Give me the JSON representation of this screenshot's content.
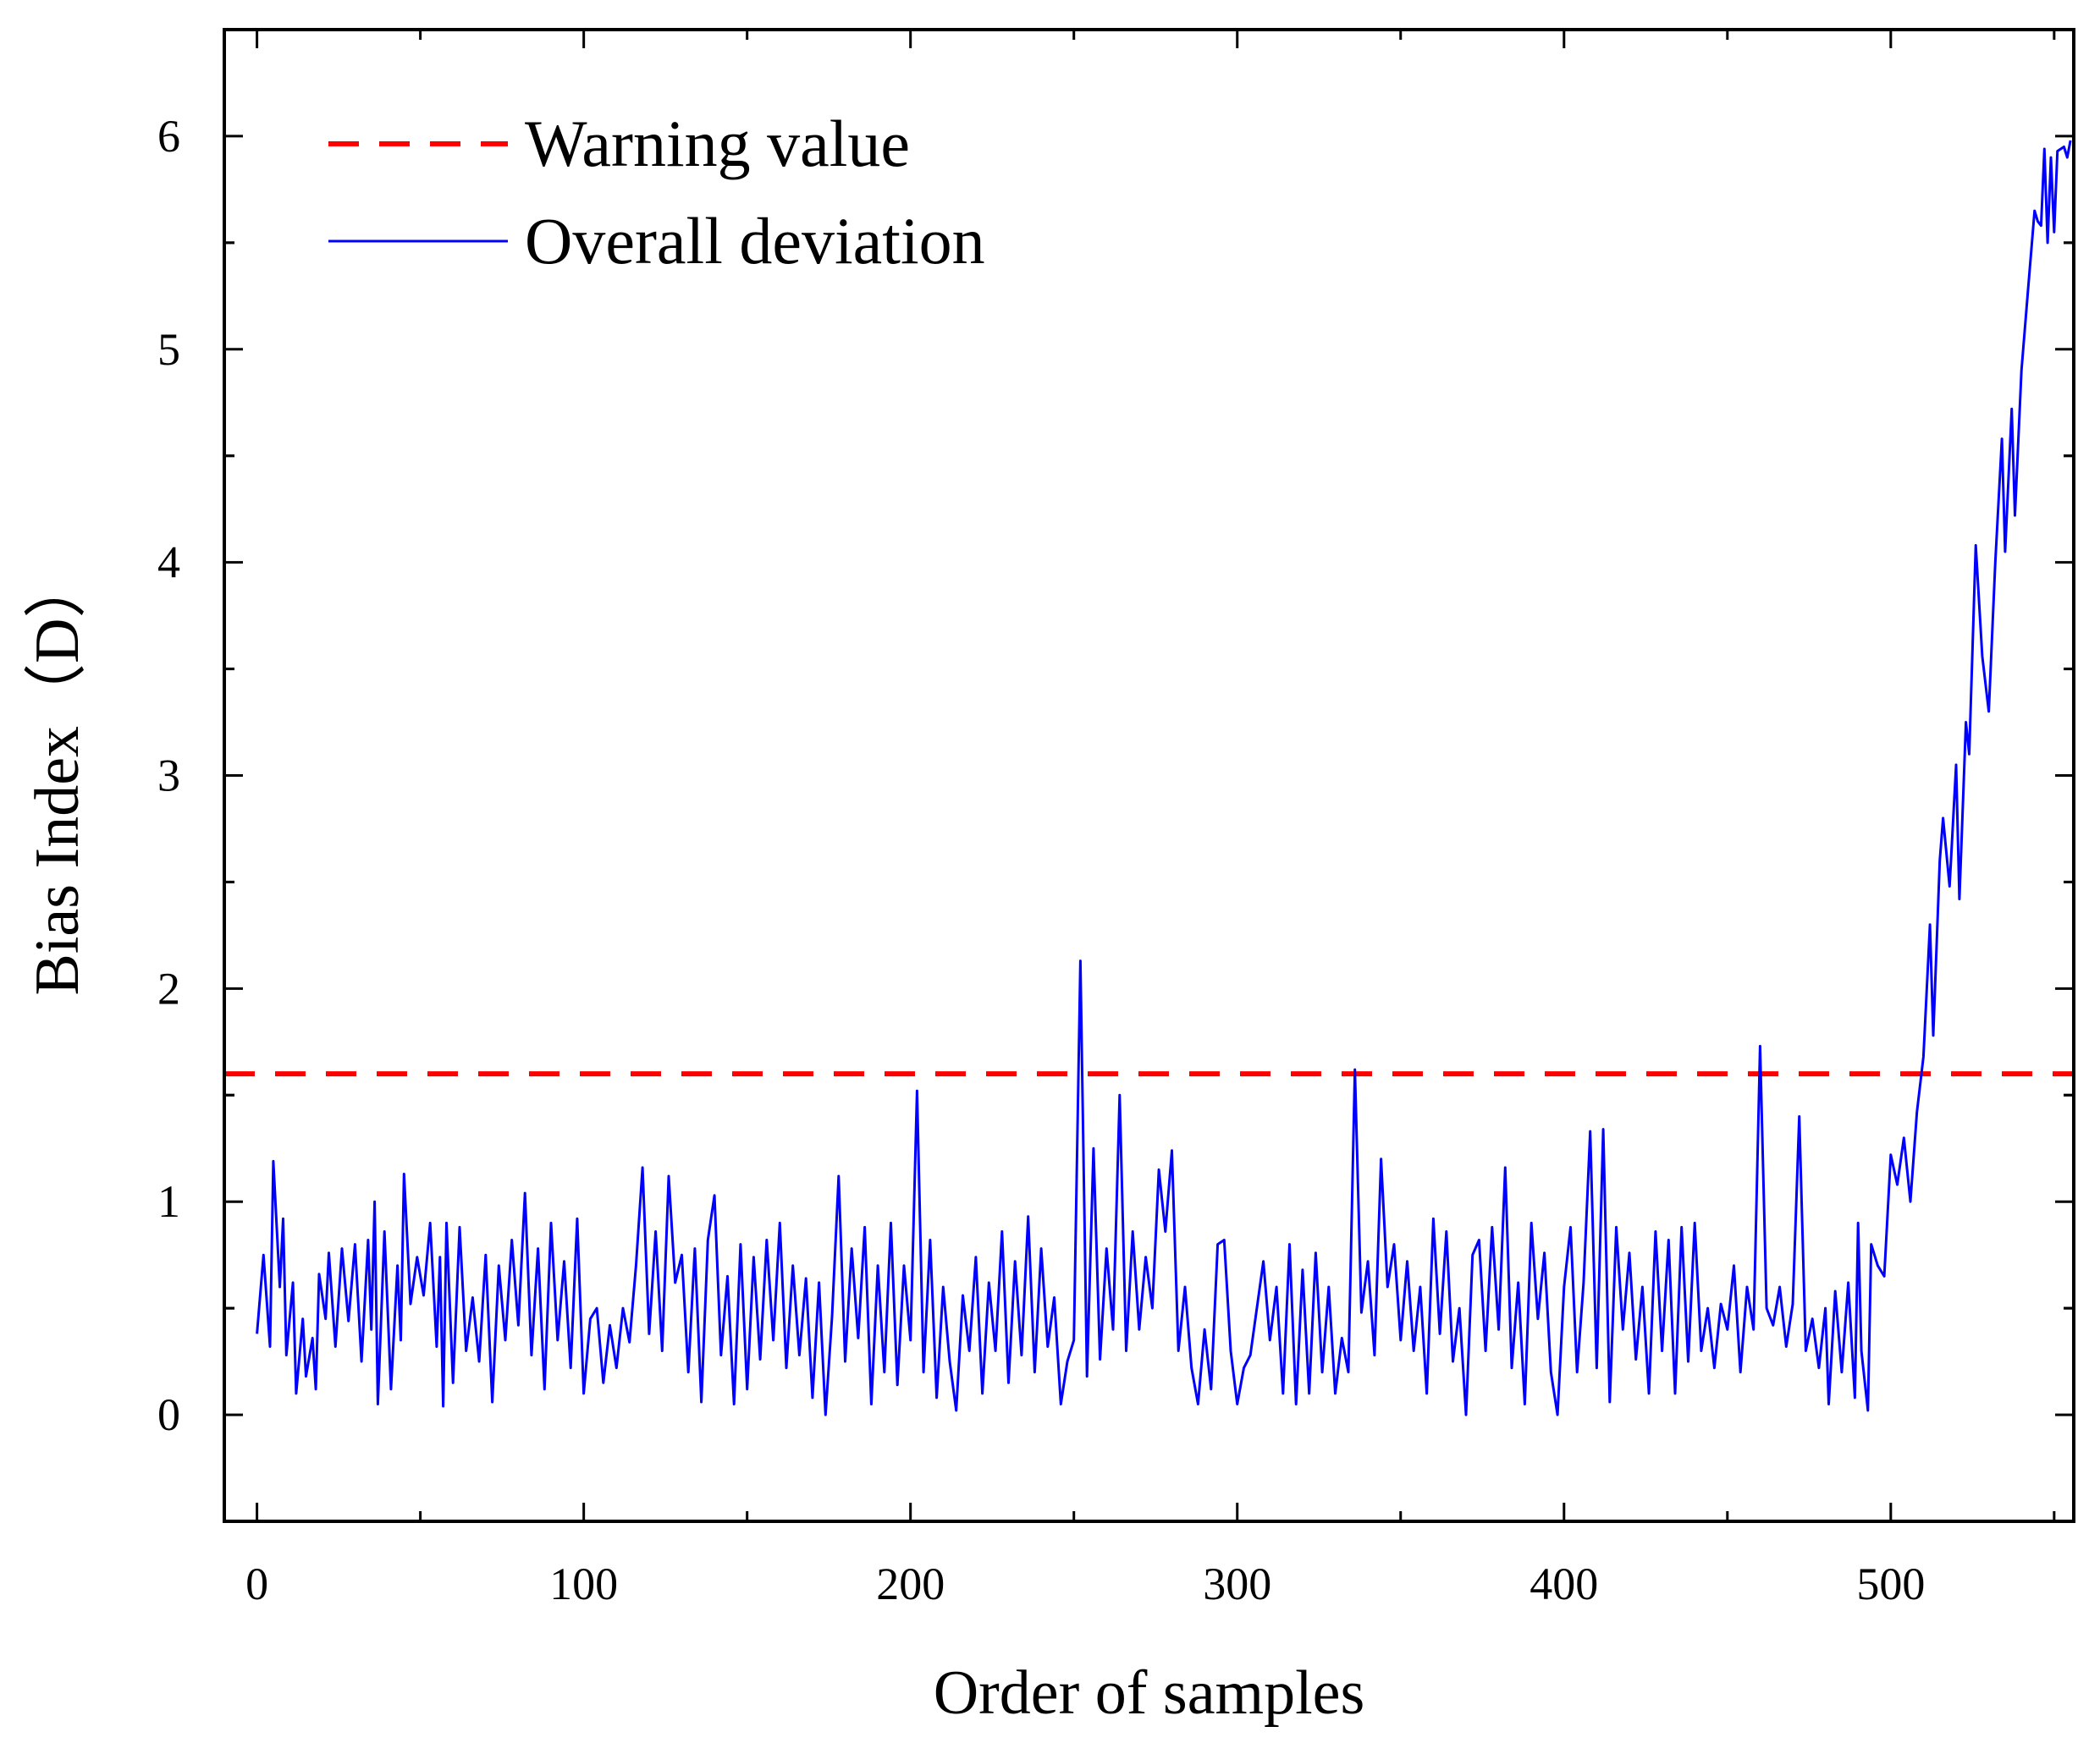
{
  "chart_data": {
    "type": "line",
    "title": "",
    "xlabel": "Order of samples",
    "ylabel": "Bias Index（D）",
    "xlim": [
      -10,
      556
    ],
    "ylim": [
      -0.5,
      6.5
    ],
    "xticks": [
      0,
      100,
      200,
      300,
      400,
      500
    ],
    "xtick_labels": [
      "0",
      "100",
      "200",
      "300",
      "400",
      "500"
    ],
    "yticks": [
      0,
      1,
      2,
      3,
      4,
      5,
      6
    ],
    "ytick_labels": [
      "0",
      "1",
      "2",
      "3",
      "4",
      "5",
      "6"
    ],
    "grid": false,
    "legend_position": "top-left",
    "colors": {
      "warning": "#ff0000",
      "deviation": "#0000ff",
      "axis": "#000000"
    },
    "series": [
      {
        "name": "Warning value",
        "style": "dashed",
        "color": "#ff0000",
        "x": [
          -10,
          556
        ],
        "y": [
          1.6,
          1.6
        ]
      },
      {
        "name": "Overall deviation",
        "style": "solid",
        "color": "#0000ff",
        "points": [
          [
            0,
            0.38
          ],
          [
            2,
            0.75
          ],
          [
            4,
            0.32
          ],
          [
            5,
            1.19
          ],
          [
            7,
            0.6
          ],
          [
            8,
            0.92
          ],
          [
            9,
            0.28
          ],
          [
            11,
            0.62
          ],
          [
            12,
            0.1
          ],
          [
            14,
            0.45
          ],
          [
            15,
            0.18
          ],
          [
            17,
            0.36
          ],
          [
            18,
            0.12
          ],
          [
            19,
            0.66
          ],
          [
            21,
            0.45
          ],
          [
            22,
            0.76
          ],
          [
            24,
            0.32
          ],
          [
            26,
            0.78
          ],
          [
            28,
            0.44
          ],
          [
            30,
            0.8
          ],
          [
            32,
            0.25
          ],
          [
            34,
            0.82
          ],
          [
            35,
            0.4
          ],
          [
            36,
            1.0
          ],
          [
            37,
            0.05
          ],
          [
            39,
            0.86
          ],
          [
            41,
            0.12
          ],
          [
            43,
            0.7
          ],
          [
            44,
            0.35
          ],
          [
            45,
            1.13
          ],
          [
            47,
            0.52
          ],
          [
            49,
            0.74
          ],
          [
            51,
            0.56
          ],
          [
            53,
            0.9
          ],
          [
            55,
            0.32
          ],
          [
            56,
            0.74
          ],
          [
            57,
            0.04
          ],
          [
            58,
            0.9
          ],
          [
            60,
            0.15
          ],
          [
            62,
            0.88
          ],
          [
            64,
            0.3
          ],
          [
            66,
            0.55
          ],
          [
            68,
            0.25
          ],
          [
            70,
            0.75
          ],
          [
            72,
            0.06
          ],
          [
            74,
            0.7
          ],
          [
            76,
            0.35
          ],
          [
            78,
            0.82
          ],
          [
            80,
            0.42
          ],
          [
            82,
            1.04
          ],
          [
            84,
            0.28
          ],
          [
            86,
            0.78
          ],
          [
            88,
            0.12
          ],
          [
            90,
            0.9
          ],
          [
            92,
            0.35
          ],
          [
            94,
            0.72
          ],
          [
            96,
            0.22
          ],
          [
            98,
            0.92
          ],
          [
            100,
            0.1
          ],
          [
            102,
            0.45
          ],
          [
            104,
            0.5
          ],
          [
            106,
            0.15
          ],
          [
            108,
            0.42
          ],
          [
            110,
            0.22
          ],
          [
            112,
            0.5
          ],
          [
            114,
            0.34
          ],
          [
            116,
            0.7
          ],
          [
            118,
            1.16
          ],
          [
            120,
            0.38
          ],
          [
            122,
            0.86
          ],
          [
            124,
            0.3
          ],
          [
            126,
            1.12
          ],
          [
            128,
            0.62
          ],
          [
            130,
            0.75
          ],
          [
            132,
            0.2
          ],
          [
            134,
            0.78
          ],
          [
            136,
            0.06
          ],
          [
            138,
            0.82
          ],
          [
            140,
            1.03
          ],
          [
            142,
            0.28
          ],
          [
            144,
            0.65
          ],
          [
            146,
            0.05
          ],
          [
            148,
            0.8
          ],
          [
            150,
            0.12
          ],
          [
            152,
            0.74
          ],
          [
            154,
            0.26
          ],
          [
            156,
            0.82
          ],
          [
            158,
            0.35
          ],
          [
            160,
            0.9
          ],
          [
            162,
            0.22
          ],
          [
            164,
            0.7
          ],
          [
            166,
            0.28
          ],
          [
            168,
            0.64
          ],
          [
            170,
            0.08
          ],
          [
            172,
            0.62
          ],
          [
            174,
            0.0
          ],
          [
            176,
            0.46
          ],
          [
            178,
            1.12
          ],
          [
            180,
            0.25
          ],
          [
            182,
            0.78
          ],
          [
            184,
            0.36
          ],
          [
            186,
            0.88
          ],
          [
            188,
            0.05
          ],
          [
            190,
            0.7
          ],
          [
            192,
            0.2
          ],
          [
            194,
            0.9
          ],
          [
            196,
            0.14
          ],
          [
            198,
            0.7
          ],
          [
            200,
            0.35
          ],
          [
            202,
            1.52
          ],
          [
            204,
            0.2
          ],
          [
            206,
            0.82
          ],
          [
            208,
            0.08
          ],
          [
            210,
            0.6
          ],
          [
            212,
            0.25
          ],
          [
            214,
            0.02
          ],
          [
            216,
            0.56
          ],
          [
            218,
            0.3
          ],
          [
            220,
            0.74
          ],
          [
            222,
            0.1
          ],
          [
            224,
            0.62
          ],
          [
            226,
            0.3
          ],
          [
            228,
            0.86
          ],
          [
            230,
            0.15
          ],
          [
            232,
            0.72
          ],
          [
            234,
            0.28
          ],
          [
            236,
            0.93
          ],
          [
            238,
            0.2
          ],
          [
            240,
            0.78
          ],
          [
            242,
            0.32
          ],
          [
            244,
            0.55
          ],
          [
            246,
            0.05
          ],
          [
            248,
            0.25
          ],
          [
            250,
            0.35
          ],
          [
            252,
            2.13
          ],
          [
            254,
            0.18
          ],
          [
            256,
            1.25
          ],
          [
            258,
            0.26
          ],
          [
            260,
            0.78
          ],
          [
            262,
            0.4
          ],
          [
            264,
            1.5
          ],
          [
            266,
            0.3
          ],
          [
            268,
            0.86
          ],
          [
            270,
            0.4
          ],
          [
            272,
            0.74
          ],
          [
            274,
            0.5
          ],
          [
            276,
            1.15
          ],
          [
            278,
            0.86
          ],
          [
            280,
            1.24
          ],
          [
            282,
            0.3
          ],
          [
            284,
            0.6
          ],
          [
            286,
            0.22
          ],
          [
            288,
            0.05
          ],
          [
            290,
            0.4
          ],
          [
            292,
            0.12
          ],
          [
            294,
            0.8
          ],
          [
            296,
            0.82
          ],
          [
            298,
            0.3
          ],
          [
            300,
            0.05
          ],
          [
            302,
            0.22
          ],
          [
            304,
            0.28
          ],
          [
            306,
            0.5
          ],
          [
            308,
            0.72
          ],
          [
            310,
            0.35
          ],
          [
            312,
            0.6
          ],
          [
            314,
            0.1
          ],
          [
            316,
            0.8
          ],
          [
            318,
            0.05
          ],
          [
            320,
            0.68
          ],
          [
            322,
            0.1
          ],
          [
            324,
            0.76
          ],
          [
            326,
            0.2
          ],
          [
            328,
            0.6
          ],
          [
            330,
            0.1
          ],
          [
            332,
            0.36
          ],
          [
            334,
            0.2
          ],
          [
            336,
            1.62
          ],
          [
            338,
            0.48
          ],
          [
            340,
            0.72
          ],
          [
            342,
            0.28
          ],
          [
            344,
            1.2
          ],
          [
            346,
            0.6
          ],
          [
            348,
            0.8
          ],
          [
            350,
            0.35
          ],
          [
            352,
            0.72
          ],
          [
            354,
            0.3
          ],
          [
            356,
            0.6
          ],
          [
            358,
            0.1
          ],
          [
            360,
            0.92
          ],
          [
            362,
            0.38
          ],
          [
            364,
            0.86
          ],
          [
            366,
            0.25
          ],
          [
            368,
            0.5
          ],
          [
            370,
            0.0
          ],
          [
            372,
            0.75
          ],
          [
            374,
            0.82
          ],
          [
            376,
            0.3
          ],
          [
            378,
            0.88
          ],
          [
            380,
            0.4
          ],
          [
            382,
            1.16
          ],
          [
            384,
            0.22
          ],
          [
            386,
            0.62
          ],
          [
            388,
            0.05
          ],
          [
            390,
            0.9
          ],
          [
            392,
            0.45
          ],
          [
            394,
            0.76
          ],
          [
            396,
            0.2
          ],
          [
            398,
            0.0
          ],
          [
            400,
            0.6
          ],
          [
            402,
            0.88
          ],
          [
            404,
            0.2
          ],
          [
            406,
            0.62
          ],
          [
            408,
            1.33
          ],
          [
            410,
            0.22
          ],
          [
            412,
            1.34
          ],
          [
            414,
            0.06
          ],
          [
            416,
            0.88
          ],
          [
            418,
            0.4
          ],
          [
            420,
            0.76
          ],
          [
            422,
            0.26
          ],
          [
            424,
            0.6
          ],
          [
            426,
            0.1
          ],
          [
            428,
            0.86
          ],
          [
            430,
            0.3
          ],
          [
            432,
            0.82
          ],
          [
            434,
            0.1
          ],
          [
            436,
            0.88
          ],
          [
            438,
            0.25
          ],
          [
            440,
            0.9
          ],
          [
            442,
            0.3
          ],
          [
            444,
            0.5
          ],
          [
            446,
            0.22
          ],
          [
            448,
            0.52
          ],
          [
            450,
            0.4
          ],
          [
            452,
            0.7
          ],
          [
            454,
            0.2
          ],
          [
            456,
            0.6
          ],
          [
            458,
            0.4
          ],
          [
            460,
            1.73
          ],
          [
            462,
            0.5
          ],
          [
            464,
            0.42
          ],
          [
            466,
            0.6
          ],
          [
            468,
            0.32
          ],
          [
            470,
            0.52
          ],
          [
            472,
            1.4
          ],
          [
            474,
            0.3
          ],
          [
            476,
            0.45
          ],
          [
            478,
            0.22
          ],
          [
            480,
            0.5
          ],
          [
            481,
            0.05
          ],
          [
            483,
            0.58
          ],
          [
            485,
            0.2
          ],
          [
            487,
            0.62
          ],
          [
            489,
            0.08
          ],
          [
            490,
            0.9
          ],
          [
            491,
            0.3
          ],
          [
            493,
            0.02
          ],
          [
            494,
            0.8
          ],
          [
            496,
            0.7
          ],
          [
            498,
            0.65
          ],
          [
            500,
            1.22
          ],
          [
            502,
            1.08
          ],
          [
            504,
            1.3
          ],
          [
            506,
            1.0
          ],
          [
            508,
            1.42
          ],
          [
            510,
            1.68
          ],
          [
            512,
            2.3
          ],
          [
            513,
            1.78
          ],
          [
            515,
            2.6
          ],
          [
            516,
            2.8
          ],
          [
            518,
            2.48
          ],
          [
            520,
            3.05
          ],
          [
            521,
            2.42
          ],
          [
            523,
            3.25
          ],
          [
            524,
            3.1
          ],
          [
            526,
            4.08
          ],
          [
            528,
            3.56
          ],
          [
            530,
            3.3
          ],
          [
            532,
            4.0
          ],
          [
            534,
            4.58
          ],
          [
            535,
            4.05
          ],
          [
            537,
            4.72
          ],
          [
            538,
            4.22
          ],
          [
            540,
            4.9
          ],
          [
            542,
            5.28
          ],
          [
            544,
            5.65
          ],
          [
            545,
            5.6
          ],
          [
            546,
            5.58
          ],
          [
            547,
            5.94
          ],
          [
            548,
            5.5
          ],
          [
            549,
            5.9
          ],
          [
            550,
            5.55
          ],
          [
            551,
            5.93
          ],
          [
            553,
            5.95
          ],
          [
            554,
            5.9
          ],
          [
            555,
            5.98
          ]
        ]
      }
    ]
  }
}
